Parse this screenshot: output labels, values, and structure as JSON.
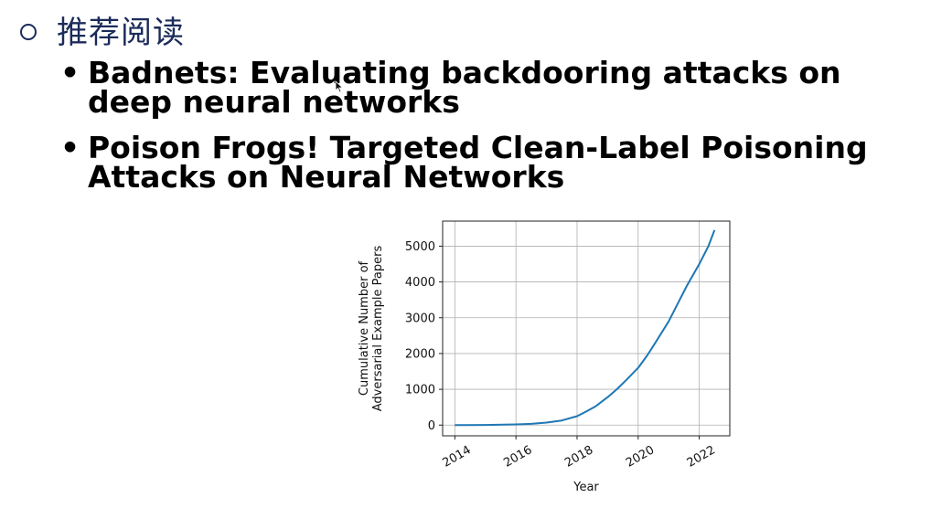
{
  "section": {
    "heading": "推荐阅读",
    "bullet_icon": "hollow-circle-icon"
  },
  "items": [
    {
      "text": "Badnets: Evaluating backdooring attacks on deep neural networks"
    },
    {
      "text": "Poison Frogs! Targeted Clean-Label Poisoning Attacks on Neural Networks"
    }
  ],
  "chart_data": {
    "type": "line",
    "title": "",
    "xlabel": "Year",
    "ylabel_lines": [
      "Cumulative Number of",
      "Adversarial Example Papers"
    ],
    "xlim": [
      2013.6,
      2023.0
    ],
    "ylim": [
      -300,
      5700
    ],
    "x_ticks": [
      2014,
      2016,
      2018,
      2020,
      2022
    ],
    "y_ticks": [
      0,
      1000,
      2000,
      3000,
      4000,
      5000
    ],
    "grid": true,
    "line_color": "#1f77b4",
    "series": [
      {
        "x": [
          2014.0,
          2015.0,
          2016.0,
          2016.5,
          2017.0,
          2017.5,
          2018.0,
          2018.3,
          2018.6,
          2019.0,
          2019.3,
          2019.6,
          2020.0,
          2020.3,
          2020.6,
          2021.0,
          2021.3,
          2021.6,
          2022.0,
          2022.3,
          2022.5
        ],
        "y": [
          0,
          5,
          20,
          35,
          70,
          130,
          250,
          380,
          520,
          780,
          1000,
          1250,
          1600,
          1950,
          2350,
          2900,
          3400,
          3900,
          4500,
          5000,
          5450
        ]
      }
    ]
  }
}
